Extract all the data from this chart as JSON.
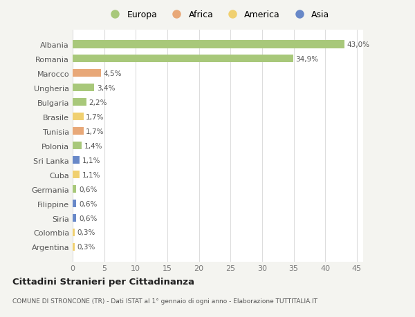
{
  "categories": [
    "Albania",
    "Romania",
    "Marocco",
    "Ungheria",
    "Bulgaria",
    "Brasile",
    "Tunisia",
    "Polonia",
    "Sri Lanka",
    "Cuba",
    "Germania",
    "Filippine",
    "Siria",
    "Colombia",
    "Argentina"
  ],
  "values": [
    43.0,
    34.9,
    4.5,
    3.4,
    2.2,
    1.7,
    1.7,
    1.4,
    1.1,
    1.1,
    0.6,
    0.6,
    0.6,
    0.3,
    0.3
  ],
  "labels": [
    "43,0%",
    "34,9%",
    "4,5%",
    "3,4%",
    "2,2%",
    "1,7%",
    "1,7%",
    "1,4%",
    "1,1%",
    "1,1%",
    "0,6%",
    "0,6%",
    "0,6%",
    "0,3%",
    "0,3%"
  ],
  "colors": [
    "#a8c87a",
    "#a8c87a",
    "#e8a878",
    "#a8c87a",
    "#a8c87a",
    "#f0d070",
    "#e8a878",
    "#a8c87a",
    "#6888c8",
    "#f0d070",
    "#a8c87a",
    "#6888c8",
    "#6888c8",
    "#f0d070",
    "#f0d070"
  ],
  "legend_labels": [
    "Europa",
    "Africa",
    "America",
    "Asia"
  ],
  "legend_colors": [
    "#a8c87a",
    "#e8a878",
    "#f0d070",
    "#6888c8"
  ],
  "title": "Cittadini Stranieri per Cittadinanza",
  "subtitle": "COMUNE DI STRONCONE (TR) - Dati ISTAT al 1° gennaio di ogni anno - Elaborazione TUTTITALIA.IT",
  "xlim": [
    0,
    46
  ],
  "xticks": [
    0,
    5,
    10,
    15,
    20,
    25,
    30,
    35,
    40,
    45
  ],
  "background_color": "#f4f4f0",
  "plot_bg_color": "#ffffff",
  "grid_color": "#dddddd",
  "bar_height": 0.55
}
